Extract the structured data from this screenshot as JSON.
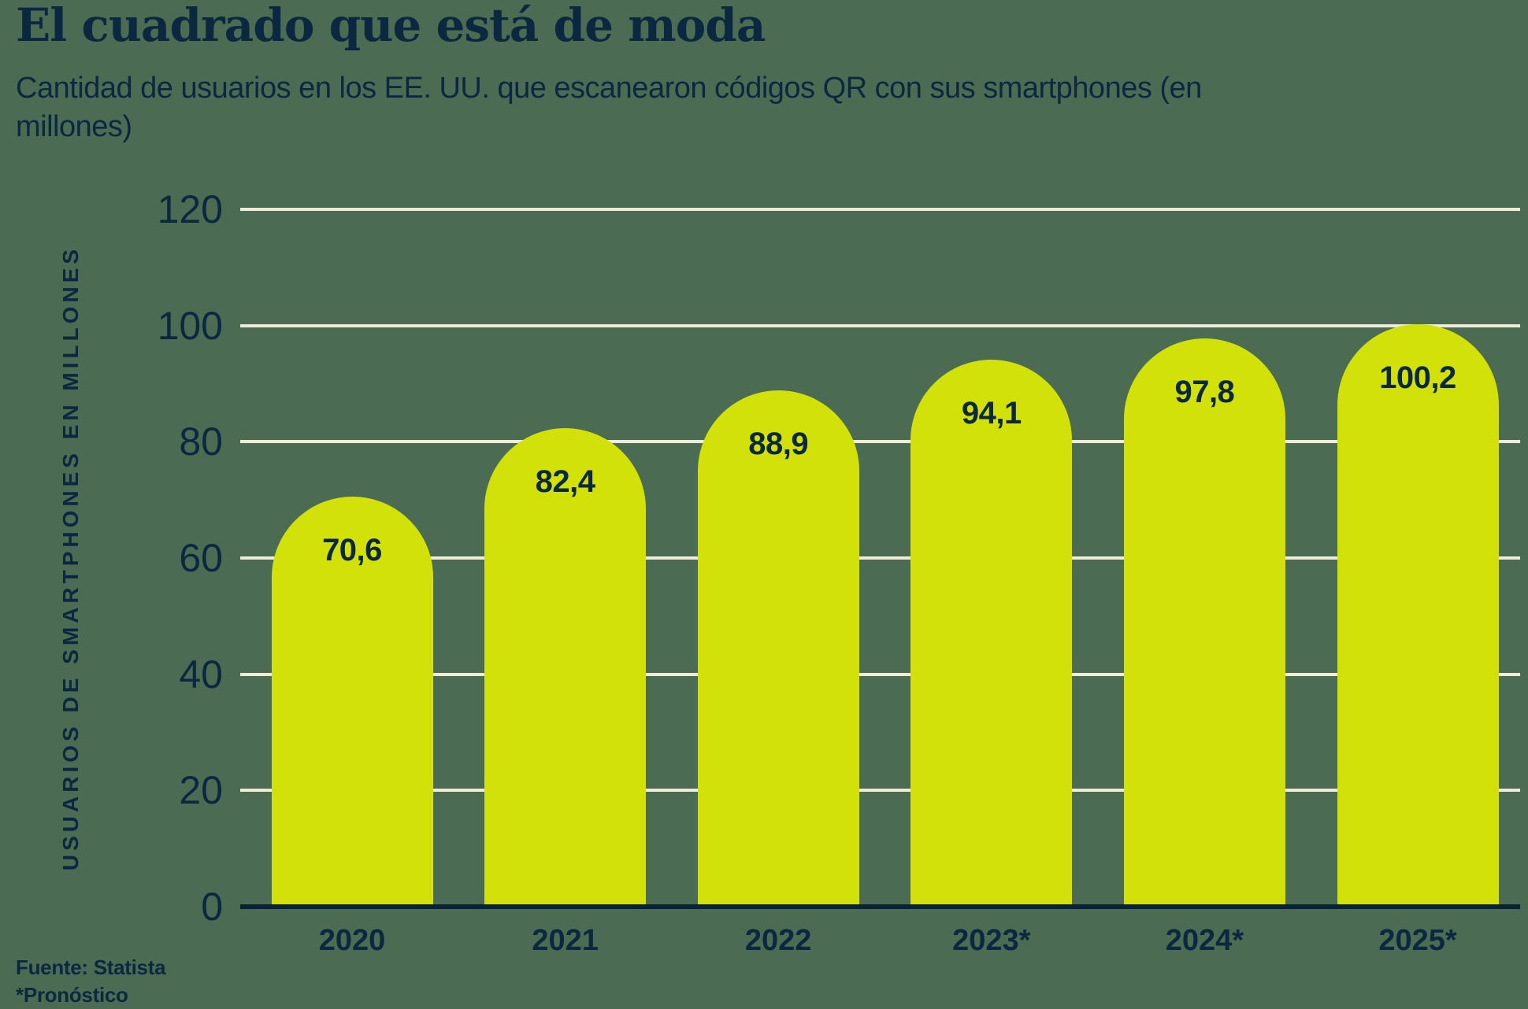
{
  "title": "El cuadrado que está de moda",
  "subtitle": "Cantidad de usuarios en los EE. UU. que escanearon códigos QR con sus smartphones (en millones)",
  "source": "Fuente: Statista",
  "footnote": "*Pronóstico",
  "colors": {
    "background": "#4B6C52",
    "bar": "#D3E10A",
    "text": "#0C2840",
    "gridline": "#F0EBD8",
    "axis_line": "#0A2238"
  },
  "chart_data": {
    "type": "bar",
    "title": "El cuadrado que está de moda",
    "subtitle": "Cantidad de usuarios en los EE. UU. que escanearon códigos QR con sus smartphones (en millones)",
    "categories": [
      "2020",
      "2021",
      "2022",
      "2023*",
      "2024*",
      "2025*"
    ],
    "values": [
      70.6,
      82.4,
      88.9,
      94.1,
      97.8,
      100.2
    ],
    "value_labels": [
      "70,6",
      "82,4",
      "88,9",
      "94,1",
      "97,8",
      "100,2"
    ],
    "ylabel": "USUARIOS DE SMARTPHONES EN MILLONES",
    "xlabel": "",
    "yticks": [
      0,
      20,
      40,
      60,
      80,
      100,
      120
    ],
    "ylim": [
      0,
      120
    ],
    "grid": true,
    "legend": false,
    "bar_style": "rounded-top",
    "source": "Fuente: Statista",
    "footnote": "*Pronóstico"
  }
}
